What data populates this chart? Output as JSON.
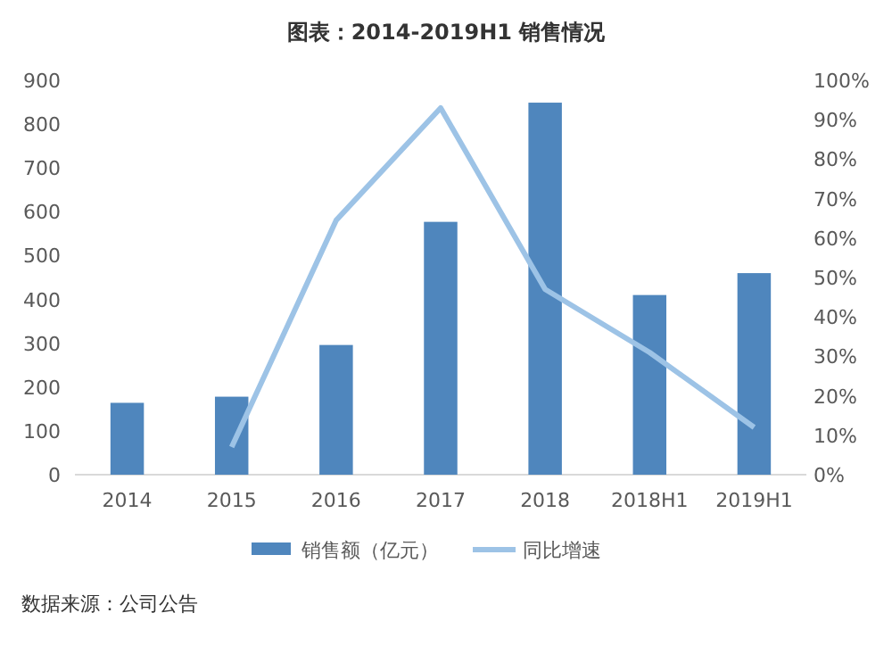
{
  "chart_data": {
    "type": "bar",
    "title": "图表：2014-2019H1 销售情况",
    "categories": [
      "2014",
      "2015",
      "2016",
      "2017",
      "2018",
      "2018H1",
      "2019H1"
    ],
    "series": [
      {
        "name": "销售额（亿元）",
        "color": "#4f86bd",
        "values": [
          164,
          178,
          296,
          577,
          849,
          410,
          460
        ]
      },
      {
        "name": "同比增速",
        "type": "line",
        "axis": "y2",
        "color": "#9dc3e6",
        "values": [
          null,
          7,
          64.5,
          93,
          47,
          31,
          12
        ]
      }
    ],
    "ylim": [
      0,
      900
    ],
    "yticks": [
      0,
      100,
      200,
      300,
      400,
      500,
      600,
      700,
      800,
      900
    ],
    "y2lim": [
      0,
      100
    ],
    "y2ticks": [
      {
        "value": 0,
        "label": "0%"
      },
      {
        "value": 10,
        "label": "10%"
      },
      {
        "value": 20,
        "label": "20%"
      },
      {
        "value": 30,
        "label": "30%"
      },
      {
        "value": 40,
        "label": "40%"
      },
      {
        "value": 50,
        "label": "50%"
      },
      {
        "value": 60,
        "label": "60%"
      },
      {
        "value": 70,
        "label": "70%"
      },
      {
        "value": 80,
        "label": "80%"
      },
      {
        "value": 90,
        "label": "90%"
      },
      {
        "value": 100,
        "label": "100%"
      }
    ],
    "legend": "bottom",
    "annotations": [
      "数据来源：公司公告"
    ]
  }
}
